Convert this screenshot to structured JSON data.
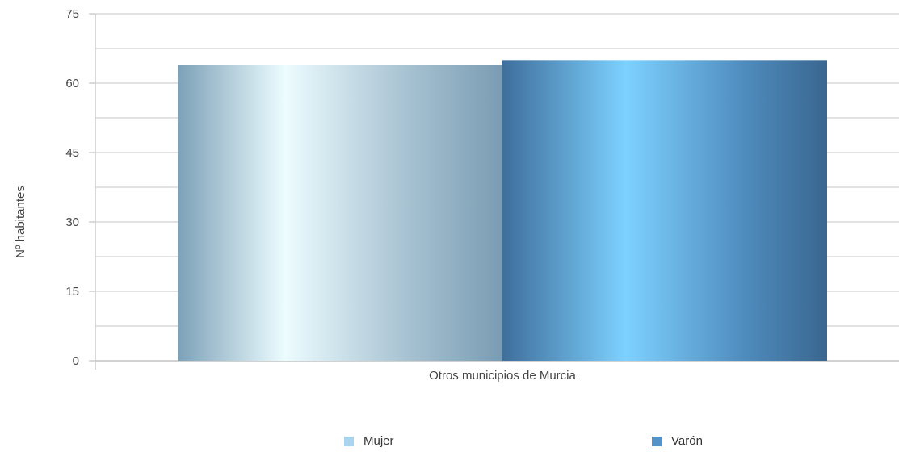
{
  "chart_data": {
    "type": "bar",
    "categories": [
      "Otros municipios de Murcia"
    ],
    "series": [
      {
        "name": "Mujer",
        "values": [
          64
        ],
        "color": "#a8d4f0"
      },
      {
        "name": "Varón",
        "values": [
          65
        ],
        "color": "#5592c8"
      }
    ],
    "ylabel": "Nº habitantes",
    "xlabel": "",
    "ylim": [
      0,
      75
    ],
    "yticks": [
      0,
      15,
      30,
      45,
      60,
      75
    ],
    "grid": true,
    "legend_position": "bottom"
  }
}
